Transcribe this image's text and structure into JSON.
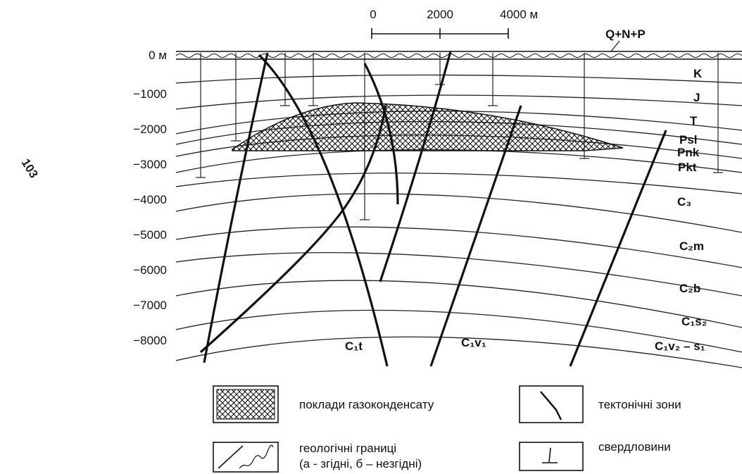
{
  "scale": {
    "labels": [
      "0",
      "2000",
      "4000 м"
    ]
  },
  "depth_labels": [
    "0 м",
    "−1000",
    "−2000",
    "−3000",
    "−4000",
    "−5000",
    "−6000",
    "−7000",
    "−8000"
  ],
  "layers": [
    "Q+N+P",
    "K",
    "J",
    "T",
    "Psl",
    "Pnk",
    "Pkt",
    "C₃",
    "C₂m",
    "C₂b",
    "C₁s₂",
    "C₁v₂ – s₁",
    "C₁t",
    "C₁v₁"
  ],
  "legend": {
    "gas": "поклади газоконденсату",
    "boundaries": [
      "геологічні границі",
      "(а - згідні, б – незгідні)"
    ],
    "faults": "тектонічні зони",
    "wells": "свердловини"
  },
  "watermark": "103"
}
